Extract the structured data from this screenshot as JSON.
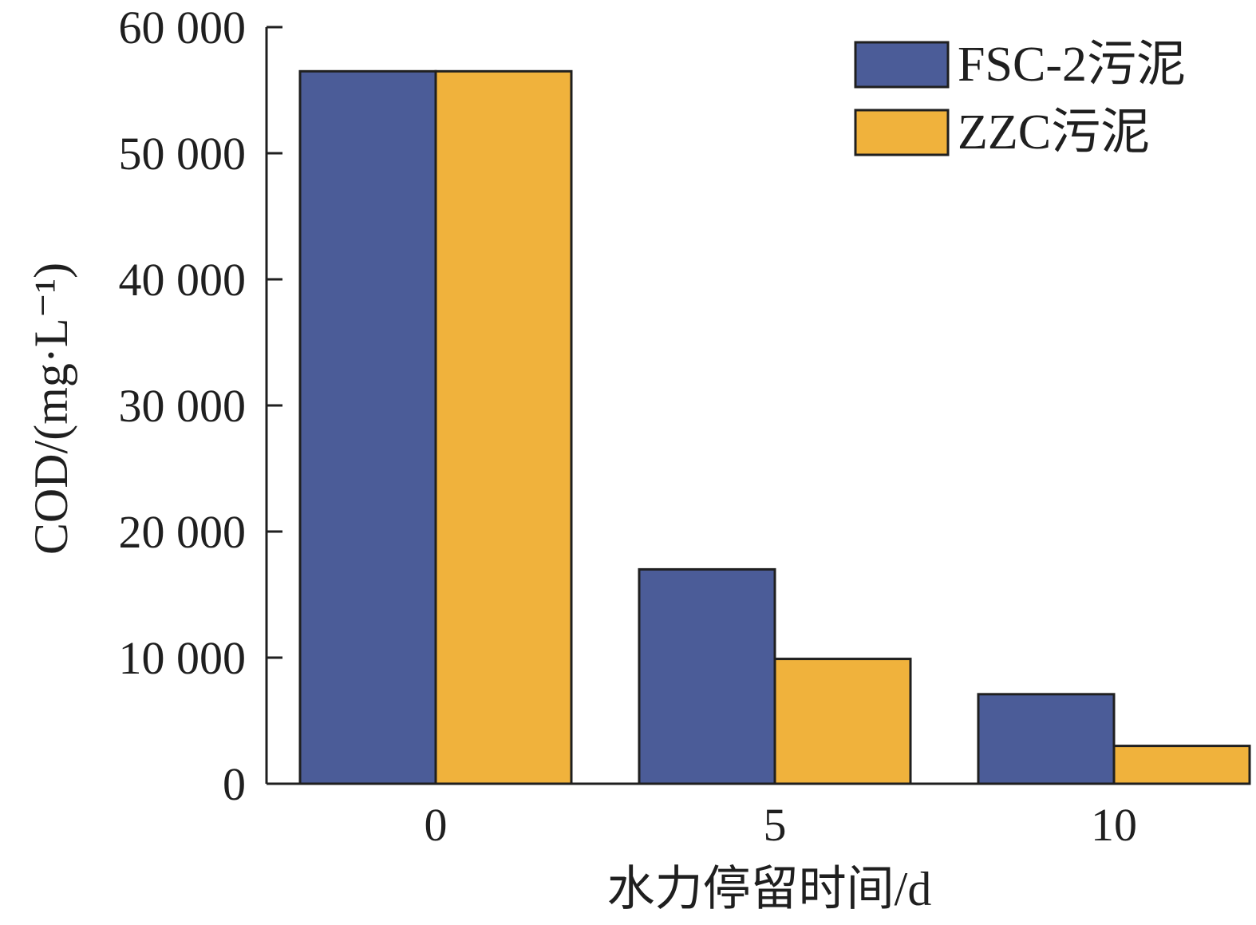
{
  "chart_data": {
    "type": "bar",
    "title": "",
    "xlabel": "水力停留时间/d",
    "ylabel": "COD/(mg·L⁻¹)",
    "categories": [
      "0",
      "5",
      "10"
    ],
    "series": [
      {
        "name": "FSC-2污泥",
        "values": [
          56500,
          17000,
          7100
        ],
        "color": "#4B5C98"
      },
      {
        "name": "ZZC污泥",
        "values": [
          56500,
          9900,
          3000
        ],
        "color": "#F0B23C"
      }
    ],
    "ylim": [
      0,
      60000
    ],
    "yticks": [
      0,
      10000,
      20000,
      30000,
      40000,
      50000,
      60000
    ],
    "ytick_labels": [
      "0",
      "10 000",
      "20 000",
      "30 000",
      "40 000",
      "50 000",
      "60 000"
    ],
    "grid": false,
    "legend_position": "top-right"
  }
}
